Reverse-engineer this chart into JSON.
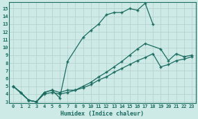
{
  "xlabel": "Humidex (Indice chaleur)",
  "ylabel": "",
  "bg_color": "#ceeae6",
  "grid_color": "#b0ceca",
  "line_color": "#1a6b60",
  "xlim": [
    -0.5,
    23.5
  ],
  "ylim": [
    2.8,
    15.8
  ],
  "xticks": [
    0,
    1,
    2,
    3,
    4,
    5,
    6,
    7,
    8,
    9,
    10,
    11,
    12,
    13,
    14,
    15,
    16,
    17,
    18,
    19,
    20,
    21,
    22,
    23
  ],
  "yticks": [
    3,
    4,
    5,
    6,
    7,
    8,
    9,
    10,
    11,
    12,
    13,
    14,
    15
  ],
  "series1_x": [
    0,
    1,
    2,
    3,
    4,
    5,
    6,
    7,
    9,
    10,
    11,
    12,
    13,
    14,
    15,
    16,
    17,
    18
  ],
  "series1_y": [
    5.0,
    4.2,
    3.2,
    3.0,
    4.2,
    4.5,
    3.5,
    8.2,
    11.3,
    12.2,
    13.0,
    14.2,
    14.5,
    14.5,
    15.0,
    14.8,
    15.7,
    13.0
  ],
  "series2_x": [
    0,
    1,
    2,
    3,
    4,
    5,
    6,
    7,
    8,
    9,
    10,
    11,
    12,
    13,
    14,
    15,
    16,
    17,
    19,
    20,
    21,
    22,
    23
  ],
  "series2_y": [
    5.0,
    4.2,
    3.2,
    3.0,
    4.2,
    4.5,
    4.2,
    4.5,
    4.5,
    5.0,
    5.5,
    6.2,
    6.8,
    7.5,
    8.2,
    9.0,
    9.8,
    10.5,
    9.8,
    8.3,
    9.2,
    8.8,
    9.0
  ],
  "series3_x": [
    0,
    2,
    3,
    4,
    5,
    6,
    7,
    8,
    9,
    10,
    11,
    12,
    13,
    14,
    15,
    16,
    17,
    18,
    19,
    20,
    21,
    22,
    23
  ],
  "series3_y": [
    5.0,
    3.2,
    3.0,
    4.0,
    4.2,
    4.0,
    4.2,
    4.5,
    4.8,
    5.2,
    5.8,
    6.2,
    6.8,
    7.3,
    7.8,
    8.3,
    8.7,
    9.2,
    7.5,
    7.8,
    8.3,
    8.5,
    8.8
  ]
}
